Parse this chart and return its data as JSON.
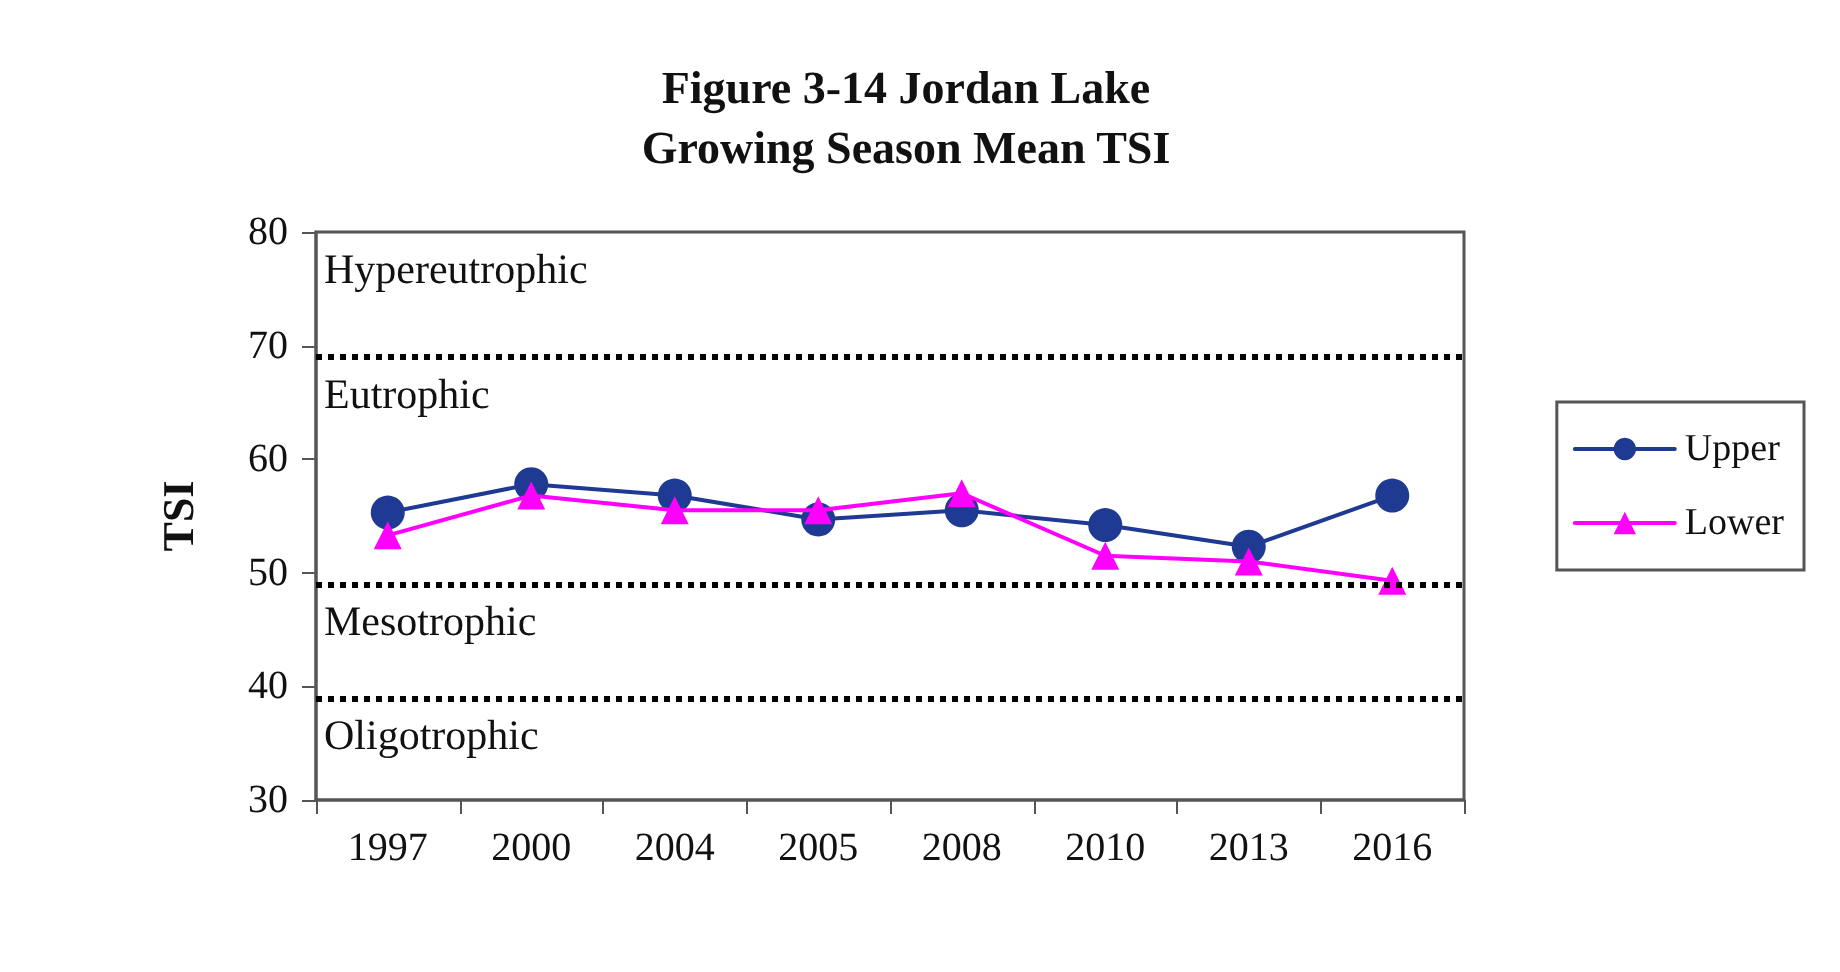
{
  "chart_data": {
    "type": "line",
    "title": "Figure 3-14 Jordan Lake\nGrowing Season Mean TSI",
    "ylabel": "TSI",
    "categories": [
      "1997",
      "2000",
      "2004",
      "2005",
      "2008",
      "2010",
      "2013",
      "2016"
    ],
    "series": [
      {
        "name": "Upper",
        "color": "#1f3a93",
        "marker": "circle",
        "values": [
          55.3,
          57.8,
          56.8,
          54.7,
          55.5,
          54.2,
          52.3,
          56.8
        ]
      },
      {
        "name": "Lower",
        "color": "#ff00ff",
        "marker": "triangle",
        "values": [
          53.3,
          56.8,
          55.5,
          55.5,
          57.0,
          51.5,
          51.0,
          49.3
        ]
      }
    ],
    "ylim": [
      30,
      80
    ],
    "yticks": [
      30,
      40,
      50,
      60,
      70,
      80
    ],
    "grid": false,
    "legend": "right",
    "ref_lines": [
      {
        "axis": "y",
        "value": 69,
        "color": "#000000",
        "line_style": "dotted"
      },
      {
        "axis": "y",
        "value": 49,
        "color": "#000000",
        "line_style": "dotted"
      },
      {
        "axis": "y",
        "value": 39,
        "color": "#000000",
        "line_style": "dotted"
      }
    ],
    "annotations": [
      "Hypereutrophic",
      "Eutrophic",
      "Mesotrophic",
      "Oligotrophic"
    ]
  }
}
